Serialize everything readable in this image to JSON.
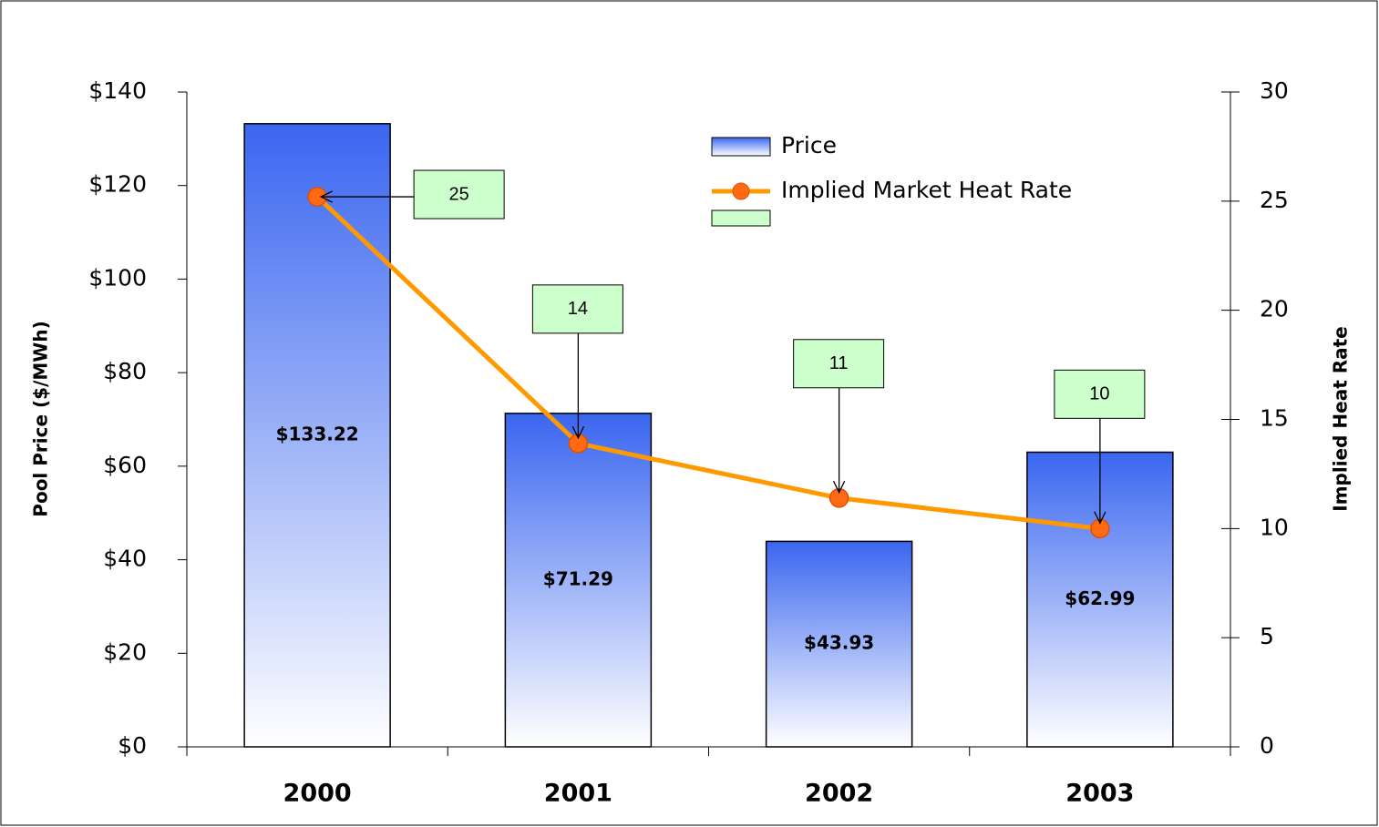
{
  "chart_data": {
    "type": "bar",
    "categories": [
      "2000",
      "2001",
      "2002",
      "2003"
    ],
    "series": [
      {
        "name": "Price",
        "type": "bar",
        "color": "#3a66f0",
        "values": [
          133.22,
          71.29,
          43.93,
          62.99
        ],
        "value_labels": [
          "$133.22",
          "$71.29",
          "$43.93",
          "$62.99"
        ]
      },
      {
        "name": "Implied Market Heat Rate",
        "type": "line",
        "axis": "y2",
        "color": "#ff9900",
        "marker_color": "#ff6a13",
        "values": [
          25.2,
          13.9,
          11.4,
          10.0
        ],
        "value_labels": [
          "25",
          "14",
          "11",
          "10"
        ]
      }
    ],
    "ylabel": "Pool Price ($/MWh)",
    "y2label": "Implied Heat Rate",
    "ylim": [
      0,
      140
    ],
    "yticks": [
      {
        "value": 0,
        "label": "$0"
      },
      {
        "value": 20,
        "label": "$20"
      },
      {
        "value": 40,
        "label": "$40"
      },
      {
        "value": 60,
        "label": "$60"
      },
      {
        "value": 80,
        "label": "$80"
      },
      {
        "value": 100,
        "label": "$100"
      },
      {
        "value": 120,
        "label": "$120"
      },
      {
        "value": 140,
        "label": "$140"
      }
    ],
    "y2lim": [
      0,
      30
    ],
    "y2ticks": [
      0,
      5,
      10,
      15,
      20,
      25,
      30
    ],
    "grid": false,
    "legend": "top-right"
  }
}
